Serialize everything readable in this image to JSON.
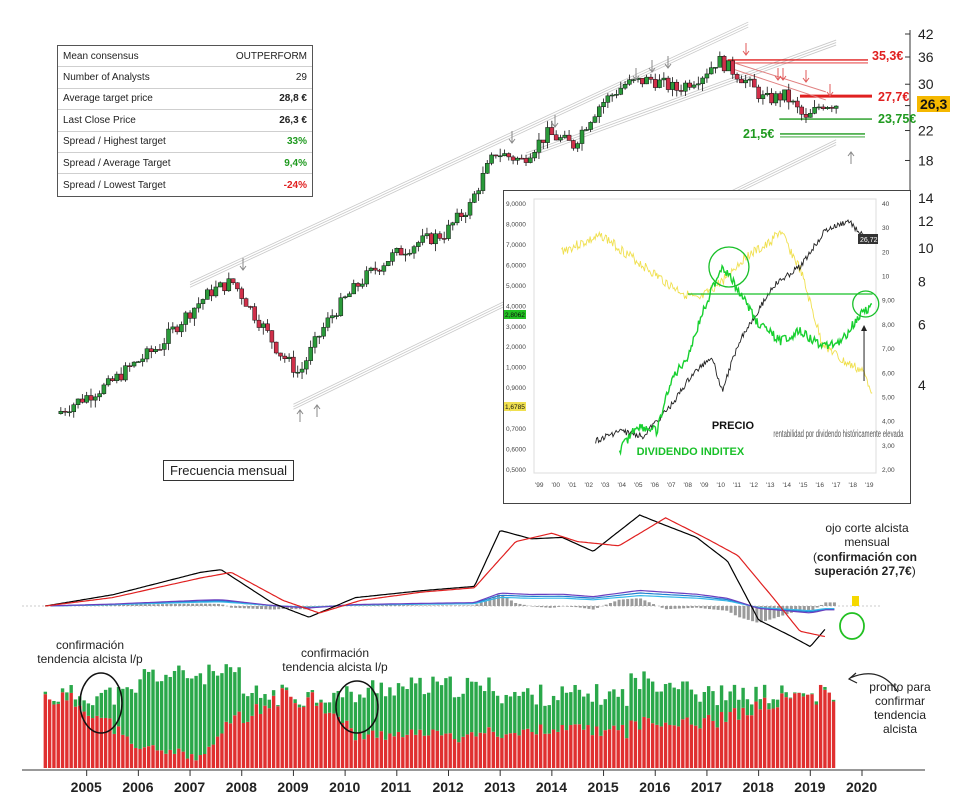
{
  "consensus": {
    "rows": [
      {
        "label": "Mean consensus",
        "value": "OUTPERFORM"
      },
      {
        "label": "Number of Analysts",
        "value": "29"
      },
      {
        "label": "Average target price",
        "value": "28,8 €"
      },
      {
        "label": "Last Close Price",
        "value": "26,3 €"
      },
      {
        "label": "Spread / Highest target",
        "value": "33%"
      },
      {
        "label": "Spread / Average Target",
        "value": "9,4%"
      },
      {
        "label": "Spread / Lowest Target",
        "value": "-24%"
      }
    ],
    "colors": {
      "positive": "#1f9a1f",
      "negative": "#e02020",
      "neutral": "#222222"
    }
  },
  "frequency_label": "Frecuencia mensual",
  "levels": {
    "high": "35,3€",
    "resistance": "27,7€",
    "last": "26,3",
    "support_mid": "23,75€",
    "support_low": "21,5€"
  },
  "annotations": {
    "ojo_corte": "ojo corte alcista mensual",
    "confirmacion_prefix": "(",
    "confirmacion_bold": "confirmación con superación 27,7€",
    "confirmacion_suffix": ")",
    "confirm_left": "confirmación tendencia alcista l/p",
    "confirm_mid": "confirmación tendencia alcista l/p",
    "pronto": "pronto para confirmar tendencia alcista"
  },
  "inset": {
    "precio_label": "PRECIO",
    "dividendo_label": "DIVIDENDO INDITEX",
    "rentabilidad_label": "rentabilidad por dividendo históricamente elevada",
    "left_ticks": [
      "9,0000",
      "8,0000",
      "7,0000",
      "6,0000",
      "5,0000",
      "4,0000",
      "3,0000",
      "2,0000",
      "1,0000",
      "0,9000",
      "0,8000",
      "0,7000",
      "0,6000",
      "0,5000"
    ],
    "right_ticks": [
      "40",
      "30",
      "20",
      "10",
      "9,00",
      "8,00",
      "7,00",
      "6,00",
      "5,00",
      "4,00",
      "3,00",
      "2,00"
    ],
    "price_badge": "26,72",
    "green_badge": "2,8062",
    "yellow_badge": "1,6785",
    "years": [
      "'99",
      "'00",
      "'01",
      "'02",
      "'03",
      "'04",
      "'05",
      "'06",
      "'07",
      "'08",
      "'09",
      "'10",
      "'11",
      "'12",
      "'13",
      "'14",
      "'15",
      "'16",
      "'17",
      "'18",
      "'19"
    ]
  },
  "chart_data": [
    {
      "type": "candlestick",
      "title": "",
      "frequency": "monthly",
      "scale": "log",
      "y_ticks": [
        4,
        6,
        8,
        10,
        12,
        14,
        18,
        22,
        26,
        30,
        36,
        42
      ],
      "x_years": [
        "2005",
        "2006",
        "2007",
        "2008",
        "2009",
        "2010",
        "2011",
        "2012",
        "2013",
        "2014",
        "2015",
        "2016",
        "2017",
        "2018",
        "2019",
        "2020"
      ],
      "anchor_prices": [
        {
          "x": 2004.5,
          "y": 3.3
        },
        {
          "x": 2005.5,
          "y": 4.0
        },
        {
          "x": 2006.5,
          "y": 5.2
        },
        {
          "x": 2007.5,
          "y": 7.5
        },
        {
          "x": 2007.9,
          "y": 8.0
        },
        {
          "x": 2008.3,
          "y": 6.5
        },
        {
          "x": 2008.8,
          "y": 5.0
        },
        {
          "x": 2009.2,
          "y": 4.3
        },
        {
          "x": 2009.8,
          "y": 6.3
        },
        {
          "x": 2010.5,
          "y": 8.3
        },
        {
          "x": 2011.0,
          "y": 9.5
        },
        {
          "x": 2011.5,
          "y": 10.4
        },
        {
          "x": 2012.0,
          "y": 11.0
        },
        {
          "x": 2012.5,
          "y": 13.3
        },
        {
          "x": 2013.0,
          "y": 19.0
        },
        {
          "x": 2013.5,
          "y": 18.0
        },
        {
          "x": 2014.0,
          "y": 21.5
        },
        {
          "x": 2014.5,
          "y": 20.0
        },
        {
          "x": 2015.0,
          "y": 26.0
        },
        {
          "x": 2015.5,
          "y": 30.0
        },
        {
          "x": 2016.0,
          "y": 31.0
        },
        {
          "x": 2016.5,
          "y": 29.0
        },
        {
          "x": 2017.0,
          "y": 32.0
        },
        {
          "x": 2017.3,
          "y": 35.3
        },
        {
          "x": 2017.8,
          "y": 31.0
        },
        {
          "x": 2018.2,
          "y": 27.0
        },
        {
          "x": 2018.6,
          "y": 27.8
        },
        {
          "x": 2019.0,
          "y": 23.5
        },
        {
          "x": 2019.3,
          "y": 26.3
        },
        {
          "x": 2019.5,
          "y": 26.3
        }
      ],
      "horizontal_levels": [
        35.3,
        27.7,
        26.3,
        23.75,
        21.5
      ]
    },
    {
      "type": "line",
      "title": "",
      "series": [
        {
          "name": "",
          "color": "#000000",
          "x": [
            2004.2,
            2005.5,
            2007.2,
            2007.6,
            2008.6,
            2009.3,
            2010.2,
            2011.5,
            2012.5,
            2013.0,
            2013.6,
            2014.2,
            2014.8,
            2015.7,
            2016.1,
            2016.8,
            2017.4,
            2018.0,
            2018.6,
            2019.0,
            2019.3
          ],
          "y": [
            0.0,
            0.8,
            2.4,
            2.6,
            0.2,
            -0.8,
            0.6,
            1.1,
            1.4,
            5.4,
            4.8,
            4.9,
            3.9,
            6.5,
            5.9,
            4.9,
            3.2,
            -1.0,
            -2.1,
            -2.9,
            -1.6
          ]
        },
        {
          "name": "",
          "color": "#e02020",
          "x": [
            2004.2,
            2005.5,
            2007.2,
            2007.8,
            2008.8,
            2009.5,
            2010.3,
            2011.5,
            2012.5,
            2013.3,
            2014.0,
            2014.5,
            2015.3,
            2016.2,
            2017.0,
            2017.6,
            2018.3,
            2018.8,
            2019.3
          ],
          "y": [
            0.0,
            0.6,
            2.0,
            2.4,
            0.4,
            -0.5,
            0.4,
            1.0,
            1.3,
            4.6,
            5.2,
            4.6,
            4.3,
            6.3,
            4.8,
            3.6,
            0.5,
            -1.8,
            -2.2
          ]
        }
      ]
    },
    {
      "type": "bar",
      "title": "",
      "stacked": true,
      "x_range": [
        2004.2,
        2019.5
      ],
      "series": [
        {
          "name": "",
          "color": "#e03030",
          "share_from": "profile"
        },
        {
          "name": "",
          "color": "#2aa84a",
          "share_from": "profile"
        }
      ],
      "green_share_profile": [
        {
          "x": 2004.2,
          "y": 0.0
        },
        {
          "x": 2005.0,
          "y": 0.15
        },
        {
          "x": 2006.0,
          "y": 0.75
        },
        {
          "x": 2007.2,
          "y": 0.9
        },
        {
          "x": 2008.0,
          "y": 0.4
        },
        {
          "x": 2008.8,
          "y": 0.0
        },
        {
          "x": 2009.5,
          "y": 0.05
        },
        {
          "x": 2010.2,
          "y": 0.55
        },
        {
          "x": 2011.0,
          "y": 0.6
        },
        {
          "x": 2012.5,
          "y": 0.6
        },
        {
          "x": 2013.5,
          "y": 0.5
        },
        {
          "x": 2014.5,
          "y": 0.45
        },
        {
          "x": 2015.5,
          "y": 0.5
        },
        {
          "x": 2016.5,
          "y": 0.45
        },
        {
          "x": 2017.5,
          "y": 0.3
        },
        {
          "x": 2018.5,
          "y": 0.05
        },
        {
          "x": 2019.5,
          "y": 0.0
        }
      ]
    }
  ]
}
